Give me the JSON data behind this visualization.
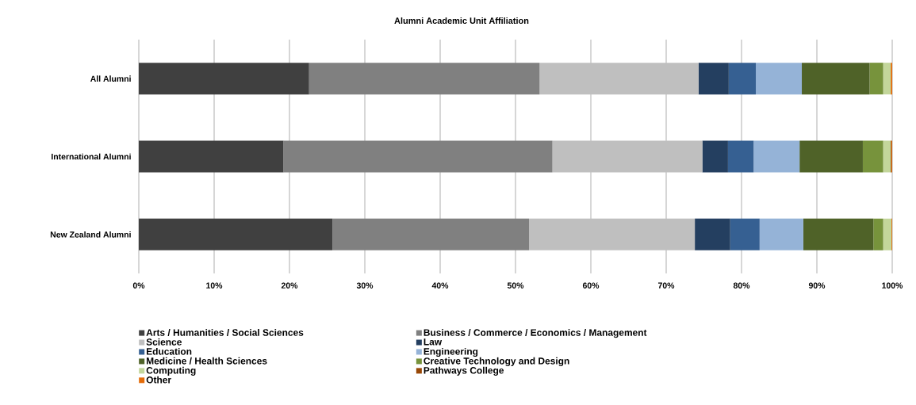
{
  "chart_data": {
    "type": "bar",
    "orientation": "horizontal",
    "stacked": true,
    "title": "Alumni Academic Unit Affiliation",
    "categories": [
      "All Alumni",
      "International Alumni",
      "New Zealand Alumni"
    ],
    "series": [
      {
        "name": "Arts / Humanities / Social Sciences",
        "color": "#404040",
        "values": [
          22.6,
          19.2,
          25.7
        ]
      },
      {
        "name": "Business / Commerce / Economics / Management",
        "color": "#808080",
        "values": [
          30.6,
          35.7,
          26.1
        ]
      },
      {
        "name": "Science",
        "color": "#bfbfbf",
        "values": [
          21.1,
          19.9,
          22.0
        ]
      },
      {
        "name": "Law",
        "color": "#243f60",
        "values": [
          4.0,
          3.4,
          4.7
        ]
      },
      {
        "name": "Education",
        "color": "#366092",
        "values": [
          3.6,
          3.4,
          3.9
        ]
      },
      {
        "name": "Engineering",
        "color": "#95b3d7",
        "values": [
          6.1,
          6.1,
          5.8
        ]
      },
      {
        "name": "Medicine / Health Sciences",
        "color": "#4f6228",
        "values": [
          9.0,
          8.4,
          9.3
        ]
      },
      {
        "name": "Creative Technology and Design",
        "color": "#77933c",
        "values": [
          1.8,
          2.7,
          1.3
        ]
      },
      {
        "name": "Computing",
        "color": "#c3d69b",
        "values": [
          1.0,
          1.0,
          1.1
        ]
      },
      {
        "name": "Pathways College",
        "color": "#984807",
        "values": [
          0.0,
          0.1,
          0.0
        ]
      },
      {
        "name": "Other",
        "color": "#e46c0a",
        "values": [
          0.2,
          0.1,
          0.1
        ]
      }
    ],
    "xlim": [
      0,
      100
    ],
    "xticks": [
      {
        "value": 0,
        "label": "0%"
      },
      {
        "value": 10,
        "label": "10%"
      },
      {
        "value": 20,
        "label": "20%"
      },
      {
        "value": 30,
        "label": "30%"
      },
      {
        "value": 40,
        "label": "40%"
      },
      {
        "value": 50,
        "label": "50%"
      },
      {
        "value": 60,
        "label": "60%"
      },
      {
        "value": 70,
        "label": "70%"
      },
      {
        "value": 80,
        "label": "80%"
      },
      {
        "value": 90,
        "label": "90%"
      },
      {
        "value": 100,
        "label": "100%"
      }
    ],
    "grid": "x",
    "legend": "bottom"
  }
}
